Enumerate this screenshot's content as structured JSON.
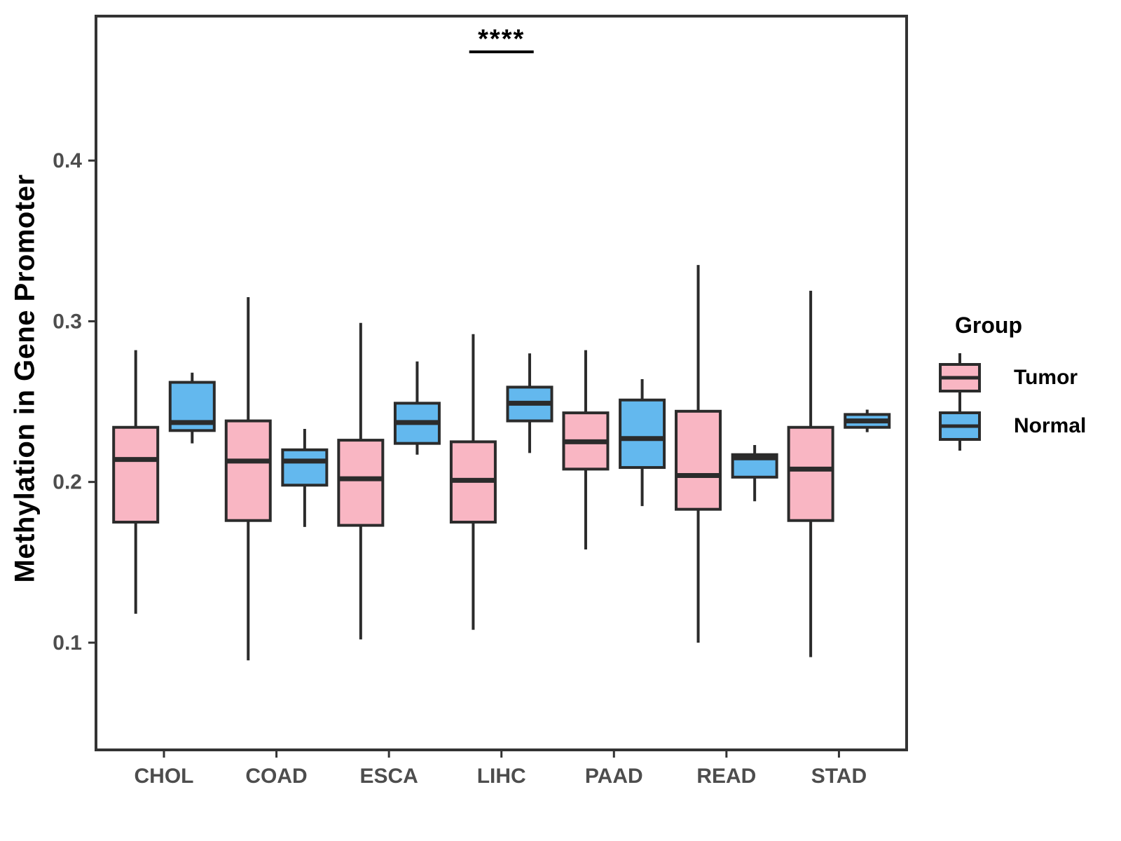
{
  "figure": {
    "kind": "grouped-boxplot",
    "background": "#ffffff"
  },
  "chart_data": {
    "type": "boxplot",
    "title": "",
    "xlabel": "",
    "ylabel": "Methylation in Gene Promoter",
    "categories": [
      "CHOL",
      "COAD",
      "ESCA",
      "LIHC",
      "PAAD",
      "READ",
      "STAD"
    ],
    "y_ticks": [
      0.1,
      0.2,
      0.3,
      0.4
    ],
    "y_tick_labels": [
      "0.1",
      "0.2",
      "0.3",
      "0.4"
    ],
    "ylim": [
      0.033,
      0.49
    ],
    "grid": "off",
    "legend_position": "right",
    "groups": [
      {
        "name": "Tumor",
        "fill": "#F9B6C3"
      },
      {
        "name": "Normal",
        "fill": "#63B8EE"
      }
    ],
    "stats": [
      {
        "category": "CHOL",
        "Tumor": {
          "lo": 0.118,
          "q1": 0.175,
          "med": 0.214,
          "q3": 0.234,
          "hi": 0.282
        },
        "Normal": {
          "lo": 0.224,
          "q1": 0.232,
          "med": 0.237,
          "q3": 0.262,
          "hi": 0.268
        }
      },
      {
        "category": "COAD",
        "Tumor": {
          "lo": 0.089,
          "q1": 0.176,
          "med": 0.213,
          "q3": 0.238,
          "hi": 0.315
        },
        "Normal": {
          "lo": 0.172,
          "q1": 0.198,
          "med": 0.213,
          "q3": 0.22,
          "hi": 0.233
        }
      },
      {
        "category": "ESCA",
        "Tumor": {
          "lo": 0.102,
          "q1": 0.173,
          "med": 0.202,
          "q3": 0.226,
          "hi": 0.299
        },
        "Normal": {
          "lo": 0.217,
          "q1": 0.224,
          "med": 0.237,
          "q3": 0.249,
          "hi": 0.275
        }
      },
      {
        "category": "LIHC",
        "Tumor": {
          "lo": 0.108,
          "q1": 0.175,
          "med": 0.201,
          "q3": 0.225,
          "hi": 0.292
        },
        "Normal": {
          "lo": 0.218,
          "q1": 0.238,
          "med": 0.249,
          "q3": 0.259,
          "hi": 0.28
        }
      },
      {
        "category": "PAAD",
        "Tumor": {
          "lo": 0.158,
          "q1": 0.208,
          "med": 0.225,
          "q3": 0.243,
          "hi": 0.282
        },
        "Normal": {
          "lo": 0.185,
          "q1": 0.209,
          "med": 0.227,
          "q3": 0.251,
          "hi": 0.264
        }
      },
      {
        "category": "READ",
        "Tumor": {
          "lo": 0.1,
          "q1": 0.183,
          "med": 0.204,
          "q3": 0.244,
          "hi": 0.335
        },
        "Normal": {
          "lo": 0.188,
          "q1": 0.203,
          "med": 0.215,
          "q3": 0.217,
          "hi": 0.223
        }
      },
      {
        "category": "STAD",
        "Tumor": {
          "lo": 0.091,
          "q1": 0.176,
          "med": 0.208,
          "q3": 0.234,
          "hi": 0.319
        },
        "Normal": {
          "lo": 0.231,
          "q1": 0.234,
          "med": 0.238,
          "q3": 0.242,
          "hi": 0.245
        }
      }
    ],
    "significance": {
      "label": "****",
      "category": "LIHC"
    },
    "legend": {
      "title": "Group"
    },
    "colors": {
      "box_stroke": "#2B2B2B",
      "panel_border": "#333333",
      "tick_mark": "#333333",
      "tick_label": "#4D4D4D",
      "annotation": "#000000"
    }
  }
}
